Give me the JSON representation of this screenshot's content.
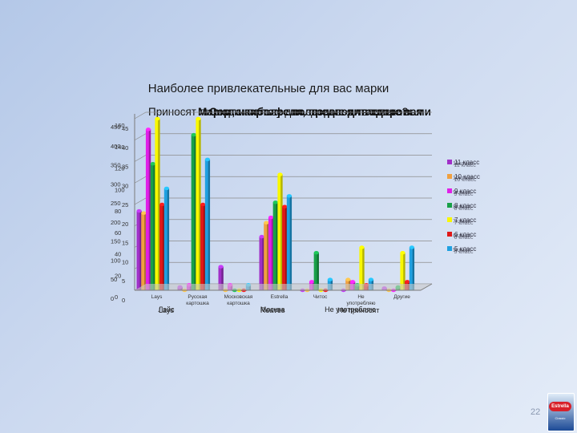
{
  "slide": {
    "page_number": "22",
    "overlay_titles": [
      {
        "text": "Приносят ли марки пользу для здоровья человека?",
        "bold": false
      },
      {
        "text": "Марки, наиболее полезные для здоровья",
        "bold": true
      },
      {
        "text": "Сорта картофеля, предпочитаемые вами",
        "bold": true
      }
    ],
    "logo": {
      "name": "Estrella",
      "sub": "Classic"
    },
    "colors": {
      "gridline": "#8c8c8c",
      "axis": "#7a7a7a",
      "floor": "#c8c8c8",
      "legend_text": "#303040"
    }
  },
  "chart_data": {
    "type": "bar",
    "title": "Наиболее привлекательные для вас марки",
    "categories": [
      "Lays",
      "Русская картошка",
      "Московская картошка",
      "Estrella",
      "Читос",
      "Не употребляю",
      "Другие"
    ],
    "x_overlays": [
      {
        "text": "Лэйс",
        "x": 0.5
      },
      {
        "text": "Lays",
        "x": 0.5
      },
      {
        "text": "Москва",
        "x": 3.1
      },
      {
        "text": "Reaves",
        "x": 3.1
      },
      {
        "text": "Не употребляю",
        "x": 5.0
      },
      {
        "text": "Не приносят",
        "x": 5.2
      }
    ],
    "y_tick_sets": [
      [
        "0",
        "20",
        "40",
        "60",
        "80",
        "100",
        "120",
        "140",
        "160"
      ],
      [
        "0",
        "50",
        "100",
        "150",
        "200",
        "250",
        "300",
        "350",
        "400",
        "450"
      ],
      [
        "0",
        "5",
        "10",
        "15",
        "20",
        "25",
        "30",
        "35",
        "40",
        "45"
      ]
    ],
    "ylim": [
      0,
      160
    ],
    "series": [
      {
        "name": "11 класс",
        "color": "#a030c8",
        "values": [
          74,
          3,
          22,
          50,
          0,
          0,
          2
        ]
      },
      {
        "name": "10 класс",
        "color": "#f0a040",
        "values": [
          72,
          0,
          0,
          63,
          0,
          10,
          0
        ]
      },
      {
        "name": "9 класс",
        "color": "#e020e8",
        "values": [
          150,
          5,
          5,
          68,
          8,
          8,
          0
        ]
      },
      {
        "name": "8 класс",
        "color": "#18a048",
        "values": [
          118,
          145,
          0,
          82,
          35,
          5,
          3
        ]
      },
      {
        "name": "7 класс",
        "color": "#f8f800",
        "values": [
          160,
          160,
          0,
          108,
          0,
          40,
          35
        ]
      },
      {
        "name": "6 класс",
        "color": "#e01818",
        "values": [
          80,
          80,
          0,
          78,
          0,
          5,
          8
        ]
      },
      {
        "name": "5 класс",
        "color": "#20a0e0",
        "values": [
          95,
          122,
          5,
          88,
          10,
          10,
          40
        ]
      }
    ],
    "legend_overlays": [
      [
        "11класс",
        "11 класс"
      ],
      [
        "10класс",
        "10 класс"
      ],
      [
        "9класс",
        "9 класс"
      ],
      [
        "8класс",
        "8 класс"
      ],
      [
        "7класс",
        "7 класс"
      ],
      [
        "6класс",
        "6 класс"
      ],
      [
        "5класс",
        "5 класс"
      ]
    ],
    "legend_position": "right",
    "grid": true
  }
}
